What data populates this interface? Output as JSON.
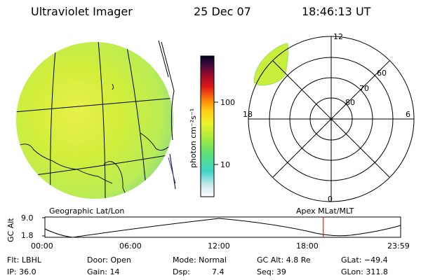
{
  "header": {
    "title": "Ultraviolet Imager",
    "date": "25 Dec 07",
    "time": "18:46:13 UT"
  },
  "colorbar": {
    "unit_label": "photon cm⁻²s⁻¹",
    "ticks": [
      "100",
      "10"
    ]
  },
  "polar": {
    "mlt_labels": [
      "12",
      "18",
      "6",
      "0"
    ],
    "lat_labels": [
      "60",
      "70",
      "80"
    ]
  },
  "orbit": {
    "left_title": "Geographic Lat/Lon",
    "right_title": "Apex MLat/MLT",
    "ylabel": "GC Alt",
    "yticks": [
      "9.0",
      "1.8"
    ],
    "xticks": [
      "00:00",
      "06:00",
      "12:00",
      "18:00",
      "23:59"
    ],
    "marker_fraction": 0.7825
  },
  "info": {
    "row1": [
      "Flt: LBHL",
      "Door: Open",
      "Mode: Normal",
      "GC Alt: 4.8 Re",
      "GLat: −49.4"
    ],
    "row2_left": [
      "IP: 36.0",
      "Gain: 14"
    ],
    "dsp_label": "Dsp:",
    "dsp_value": "7.4",
    "row2_right": [
      "Seq: 39",
      "GLon: 311.8"
    ]
  },
  "colors": {
    "disk_fill": "#c9ef3c",
    "disk_edge": "#9fe06a",
    "marker": "#d00000"
  }
}
